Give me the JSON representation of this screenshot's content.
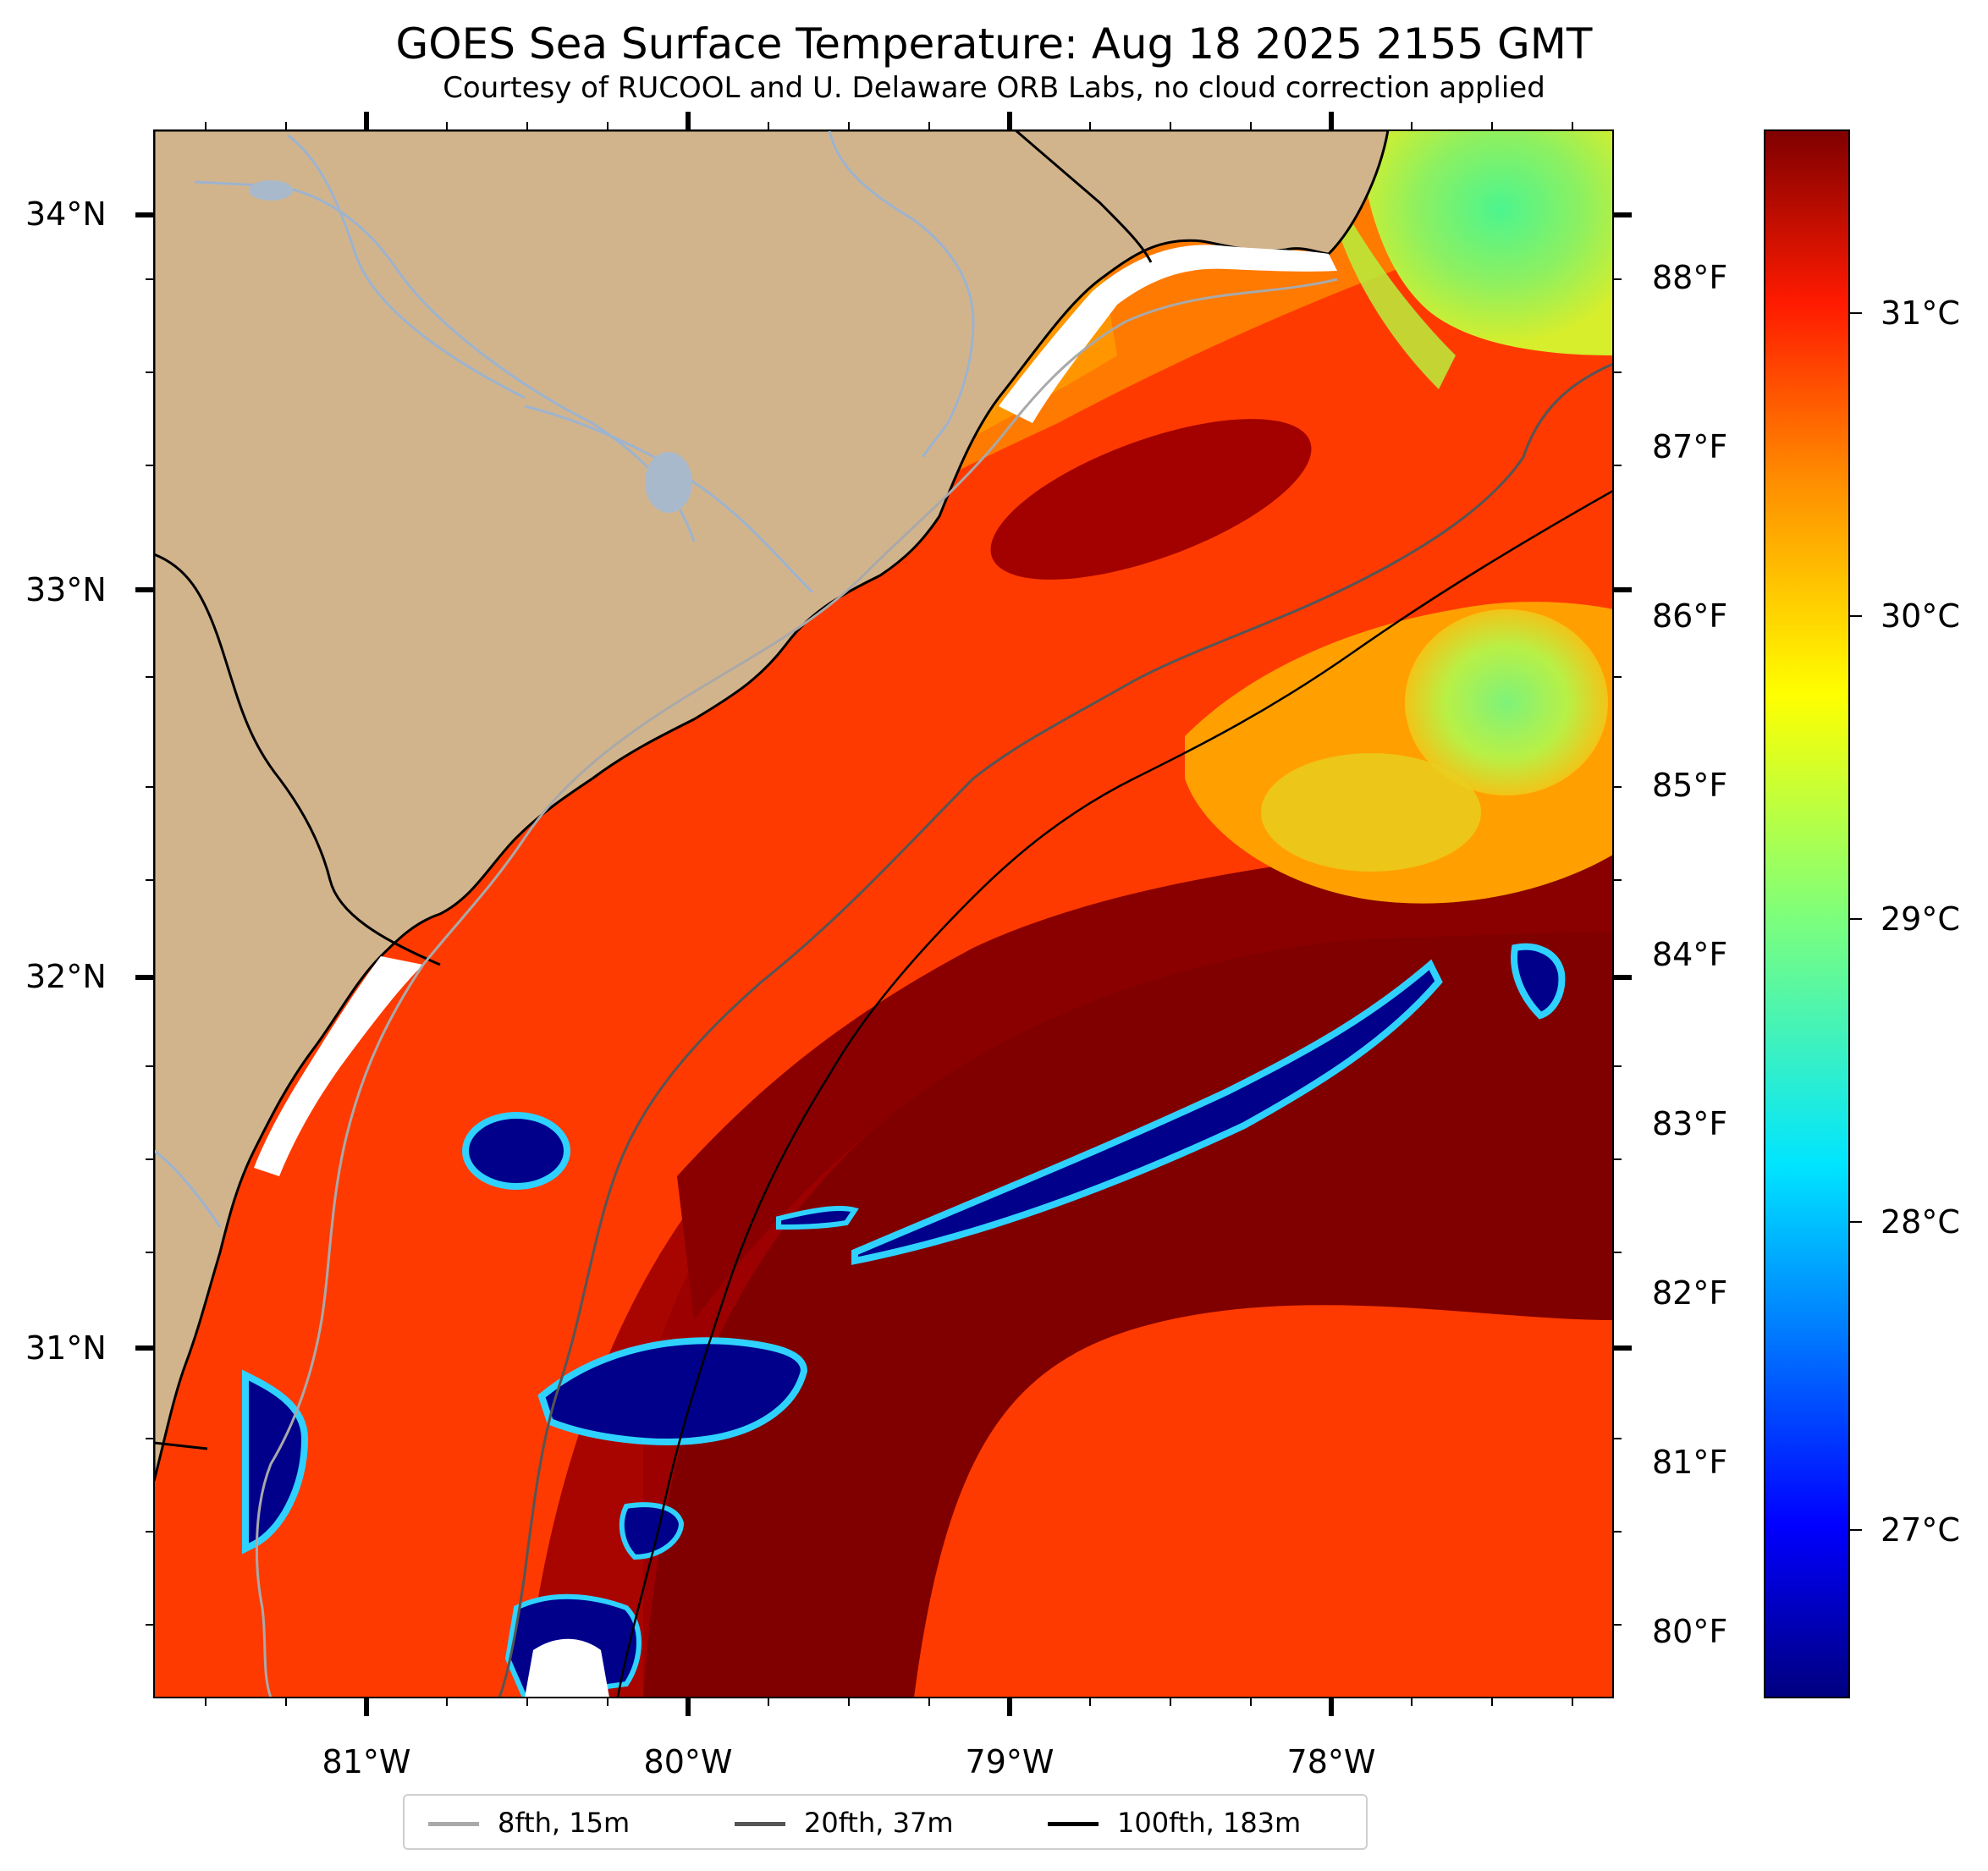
{
  "title": "GOES Sea Surface Temperature: Aug 18 2025 2155 GMT",
  "subtitle": "Courtesy of RUCOOL and U. Delaware ORB Labs, no cloud correction applied",
  "latitude_labels": [
    "34°N",
    "33°N",
    "32°N",
    "31°N"
  ],
  "longitude_labels": [
    "81°W",
    "80°W",
    "79°W",
    "78°W"
  ],
  "fahrenheit_labels": [
    "88°F",
    "87°F",
    "86°F",
    "85°F",
    "84°F",
    "83°F",
    "82°F",
    "81°F",
    "80°F"
  ],
  "celsius_labels": [
    "31°C",
    "30°C",
    "29°C",
    "28°C",
    "27°C"
  ],
  "legend": [
    {
      "label": "8fth, 15m",
      "color": "#a9a9a9"
    },
    {
      "label": "20fth, 37m",
      "color": "#555555"
    },
    {
      "label": "100fth, 183m",
      "color": "#000000"
    }
  ],
  "colors": {
    "land": "#d2b48c",
    "rivers": "#9db3cf",
    "cold_patch": "#00008b",
    "warm_max": "#800000",
    "colormap": "jet"
  }
}
